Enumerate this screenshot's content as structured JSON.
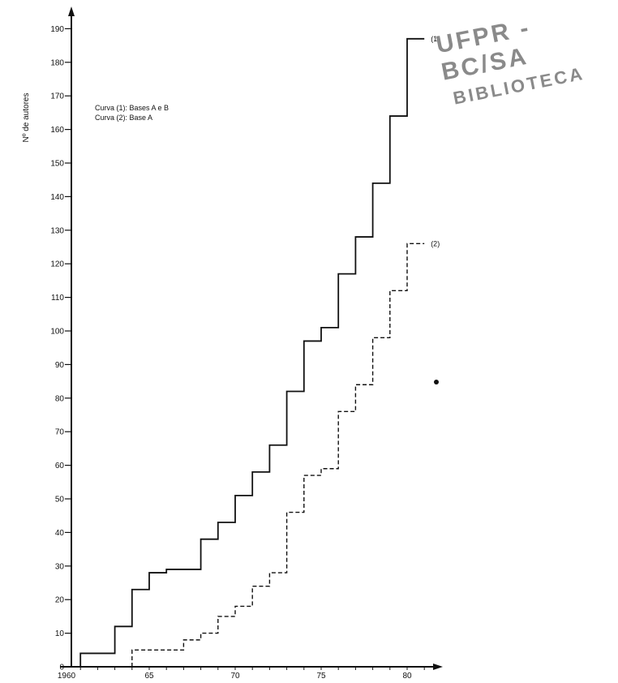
{
  "chart_data": {
    "type": "line",
    "step": true,
    "ylabel": "Nº de autores",
    "xlabel": "",
    "xlim": [
      1960,
      1981.5
    ],
    "ylim": [
      0,
      190
    ],
    "yticks": [
      0,
      10,
      20,
      30,
      40,
      50,
      60,
      70,
      80,
      90,
      100,
      110,
      120,
      130,
      140,
      150,
      160,
      170,
      180,
      190
    ],
    "xticks": [
      1960,
      1965,
      1970,
      1975,
      1980
    ],
    "xtick_labels": [
      "1960",
      "65",
      "70",
      "75",
      "80"
    ],
    "legend": [
      "Curva (1): Bases A e B",
      "Curva (2): Base A"
    ],
    "series": [
      {
        "name": "(1)",
        "style": "solid",
        "x": [
          1961,
          1963,
          1964,
          1965,
          1966,
          1968,
          1969,
          1970,
          1971,
          1972,
          1973,
          1974,
          1975,
          1976,
          1977,
          1978,
          1979,
          1980,
          1981
        ],
        "y": [
          4,
          12,
          23,
          28,
          29,
          38,
          43,
          51,
          58,
          66,
          82,
          97,
          101,
          117,
          128,
          144,
          164,
          187,
          187
        ]
      },
      {
        "name": "(2)",
        "style": "dashed",
        "x": [
          1964,
          1967,
          1968,
          1969,
          1970,
          1971,
          1972,
          1973,
          1974,
          1975,
          1976,
          1977,
          1978,
          1979,
          1980,
          1981
        ],
        "y": [
          5,
          8,
          10,
          15,
          18,
          24,
          28,
          46,
          57,
          59,
          76,
          84,
          98,
          112,
          126,
          126
        ]
      }
    ]
  },
  "stamp": {
    "line1": "UFPR - BC/SA",
    "line2": "BIBLIOTECA"
  }
}
